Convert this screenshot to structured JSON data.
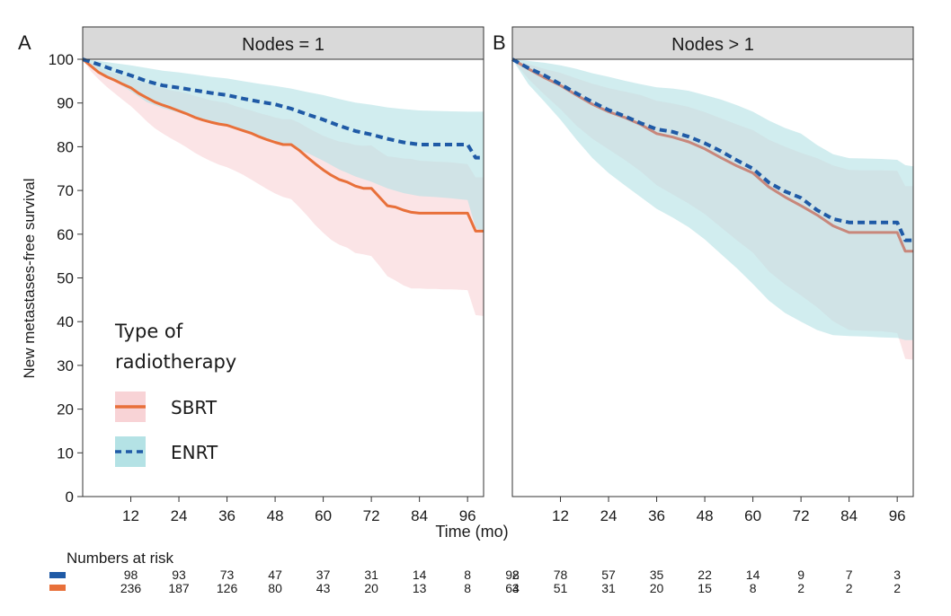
{
  "figure": {
    "x_axis_label": "Time (mo)",
    "y_axis_label": "New metastases-free survival",
    "legend": {
      "title_line1": "Type of",
      "title_line2": "radiotherapy",
      "items": [
        "SBRT",
        "ENRT"
      ]
    },
    "risk_table": {
      "title": "Numbers at risk"
    }
  },
  "chart_data": [
    {
      "type": "line",
      "panel_letter": "A",
      "title": "Nodes = 1",
      "xlabel": "Time (mo)",
      "ylabel": "New metastases-free survival",
      "xlim": [
        0,
        100
      ],
      "ylim": [
        0,
        100
      ],
      "x_ticks": [
        12,
        24,
        36,
        48,
        60,
        72,
        84,
        96
      ],
      "y_ticks": [
        0,
        10,
        20,
        30,
        40,
        50,
        60,
        70,
        80,
        90,
        100
      ],
      "series": [
        {
          "name": "SBRT",
          "color": "#e8703a",
          "band_color": "#f8d3d6",
          "line_style": "solid",
          "x": [
            0,
            2,
            4,
            6,
            8,
            10,
            12,
            14,
            16,
            18,
            20,
            22,
            24,
            26,
            28,
            30,
            32,
            34,
            36,
            38,
            40,
            42,
            44,
            46,
            48,
            50,
            52,
            54,
            56,
            58,
            60,
            62,
            64,
            66,
            68,
            70,
            72,
            74,
            76,
            78,
            80,
            82,
            84,
            86,
            88,
            90,
            92,
            94,
            96,
            98,
            100
          ],
          "values": [
            100,
            98.5,
            97,
            96,
            95.2,
            94.3,
            93.5,
            92.2,
            91.2,
            90.2,
            89.5,
            88.9,
            88.2,
            87.5,
            86.7,
            86.1,
            85.6,
            85.2,
            84.9,
            84.3,
            83.7,
            83.1,
            82.3,
            81.6,
            81,
            80.5,
            80.5,
            79.2,
            77.6,
            76.1,
            74.7,
            73.5,
            72.5,
            71.9,
            71,
            70.5,
            70.5,
            68.5,
            66.5,
            66.2,
            65.5,
            65,
            64.8,
            64.8,
            64.8,
            64.8,
            64.8,
            64.8,
            64.8,
            60.7,
            60.7
          ],
          "lower": [
            100,
            97.3,
            95.4,
            93.7,
            92.2,
            90.7,
            89.3,
            87.6,
            85.8,
            84.2,
            83,
            81.9,
            80.9,
            79.8,
            78.6,
            77.6,
            76.7,
            75.9,
            75.3,
            74.5,
            73.6,
            72.5,
            71.4,
            70.3,
            69.3,
            68.5,
            68,
            66.2,
            64.2,
            62.1,
            60.3,
            58.7,
            57.6,
            56.9,
            55.7,
            55.4,
            55,
            52.8,
            50.4,
            49.4,
            48.3,
            47.6,
            47.6,
            47.5,
            47.5,
            47.4,
            47.4,
            47.3,
            47.2,
            41.5,
            41.3
          ],
          "upper": [
            100,
            99.2,
            98.1,
            97.3,
            96.8,
            96.3,
            95.8,
            95,
            94.5,
            93.9,
            93.4,
            92.9,
            92.6,
            92.2,
            91.6,
            91.1,
            90.6,
            90.3,
            90,
            89.3,
            88.8,
            88.3,
            87.7,
            87.2,
            86.7,
            86.3,
            86.3,
            85.5,
            84.4,
            83.4,
            82.5,
            81.8,
            81.2,
            80.9,
            80.4,
            80.2,
            80.3,
            79,
            77.8,
            77.6,
            77.3,
            77.2,
            76.8,
            76.7,
            76.6,
            76.5,
            76.4,
            76.2,
            76,
            73,
            73
          ]
        },
        {
          "name": "ENRT",
          "color": "#1f5aa6",
          "band_color": "#b4e2e5",
          "line_style": "dashed",
          "x": [
            0,
            4,
            8,
            12,
            16,
            20,
            24,
            28,
            32,
            36,
            40,
            44,
            48,
            52,
            56,
            60,
            64,
            68,
            72,
            76,
            80,
            84,
            88,
            92,
            96,
            98,
            100
          ],
          "values": [
            100,
            98.8,
            97.5,
            96.3,
            95,
            94,
            93.5,
            92.9,
            92.3,
            91.8,
            91,
            90.3,
            89.7,
            88.7,
            87.4,
            86.2,
            84.8,
            83.6,
            82.8,
            81.8,
            81,
            80.5,
            80.5,
            80.5,
            80.5,
            77.5,
            77.5
          ],
          "lower": [
            100,
            97.2,
            95,
            92.7,
            90.2,
            88.8,
            87.8,
            86.6,
            85.7,
            84.8,
            83.5,
            82.4,
            81.4,
            80,
            78.6,
            76.8,
            74.8,
            73.2,
            72,
            70.5,
            69.4,
            68.7,
            68.5,
            68.2,
            67.8,
            61.5,
            60.5
          ],
          "upper": [
            100,
            99.6,
            99.1,
            98.6,
            98,
            97.4,
            97,
            96.5,
            96,
            95.6,
            95,
            94.4,
            93.9,
            93.3,
            92.5,
            91.8,
            90.9,
            90.1,
            89.6,
            89,
            88.6,
            88.3,
            88.2,
            88.1,
            88,
            88,
            88
          ]
        }
      ],
      "risk_table": {
        "x": [
          12,
          24,
          36,
          48,
          60,
          72,
          84,
          96,
          108
        ],
        "ENRT": [
          98,
          93,
          73,
          47,
          37,
          31,
          14,
          8,
          2
        ],
        "SBRT": [
          236,
          187,
          126,
          80,
          43,
          20,
          13,
          8,
          3
        ]
      }
    },
    {
      "type": "line",
      "panel_letter": "B",
      "title": "Nodes > 1",
      "xlabel": "Time (mo)",
      "xlim": [
        0,
        100
      ],
      "ylim": [
        0,
        100
      ],
      "x_ticks": [
        12,
        24,
        36,
        48,
        60,
        72,
        84,
        96
      ],
      "series": [
        {
          "name": "SBRT",
          "color": "#c8877b",
          "band_color": "#f8d3d6",
          "line_style": "solid",
          "x": [
            0,
            4,
            8,
            12,
            16,
            20,
            24,
            28,
            32,
            36,
            40,
            44,
            48,
            52,
            56,
            60,
            64,
            68,
            72,
            76,
            80,
            84,
            88,
            92,
            96,
            98,
            100
          ],
          "values": [
            100,
            97.8,
            95.8,
            94,
            91.8,
            89.7,
            88,
            86.7,
            85.1,
            83,
            82.2,
            81.1,
            79.5,
            77.5,
            75.6,
            74,
            70.8,
            68.5,
            66.5,
            64.4,
            61.9,
            60.4,
            60.4,
            60.4,
            60.4,
            56.1,
            56.1
          ],
          "lower": [
            100,
            95.5,
            91.9,
            88.6,
            84.8,
            81.8,
            79.4,
            77,
            74.4,
            71.2,
            69.1,
            67,
            64.6,
            61.6,
            58.6,
            55.8,
            51.5,
            48.5,
            46,
            43.3,
            40.1,
            38.1,
            37.9,
            37.8,
            37.4,
            31.5,
            31.3
          ],
          "upper": [
            100,
            98.9,
            97.8,
            96.9,
            95.6,
            94.4,
            93.4,
            92.6,
            91.8,
            90.5,
            89.9,
            89.1,
            87.9,
            86.5,
            85.1,
            83.8,
            81.6,
            80,
            78.6,
            77.4,
            75.7,
            74.7,
            74.6,
            74.6,
            74.5,
            71,
            71
          ]
        },
        {
          "name": "ENRT",
          "color": "#1f5aa6",
          "band_color": "#b4e2e5",
          "line_style": "dashed",
          "x": [
            0,
            4,
            8,
            12,
            16,
            20,
            24,
            28,
            32,
            36,
            40,
            44,
            48,
            52,
            56,
            60,
            64,
            68,
            72,
            76,
            80,
            84,
            88,
            92,
            96,
            98,
            100
          ],
          "values": [
            100,
            98,
            96.3,
            94.3,
            92.2,
            90.2,
            88.4,
            87,
            85.4,
            84,
            83.4,
            82.3,
            80.8,
            79,
            76.9,
            75,
            71.8,
            69.8,
            68.3,
            65.5,
            63.5,
            62.7,
            62.7,
            62.7,
            62.7,
            58.6,
            58.6
          ],
          "lower": [
            100,
            94.3,
            90.3,
            86.2,
            81.6,
            77.4,
            74,
            71.2,
            68.5,
            65.8,
            63.8,
            61.6,
            58.8,
            55.5,
            52.2,
            48.6,
            44.8,
            42,
            40,
            38.1,
            36.9,
            36.7,
            36.6,
            36.4,
            36.3,
            35.8,
            35.8
          ],
          "upper": [
            100,
            99.6,
            99.2,
            98.6,
            97.8,
            96.8,
            96,
            95.1,
            94.3,
            93.6,
            93.3,
            92.8,
            91.8,
            90.8,
            89.5,
            88,
            86,
            84.3,
            83,
            80.4,
            78.3,
            77.4,
            77.3,
            77.2,
            77,
            75.8,
            75.5
          ]
        }
      ],
      "risk_table": {
        "x": [
          0,
          12,
          24,
          36,
          48,
          60,
          72,
          84,
          96
        ],
        "ENRT": [
          98,
          78,
          57,
          35,
          22,
          14,
          9,
          7,
          3
        ],
        "SBRT": [
          64,
          51,
          31,
          20,
          15,
          8,
          2,
          2,
          2
        ]
      }
    }
  ]
}
